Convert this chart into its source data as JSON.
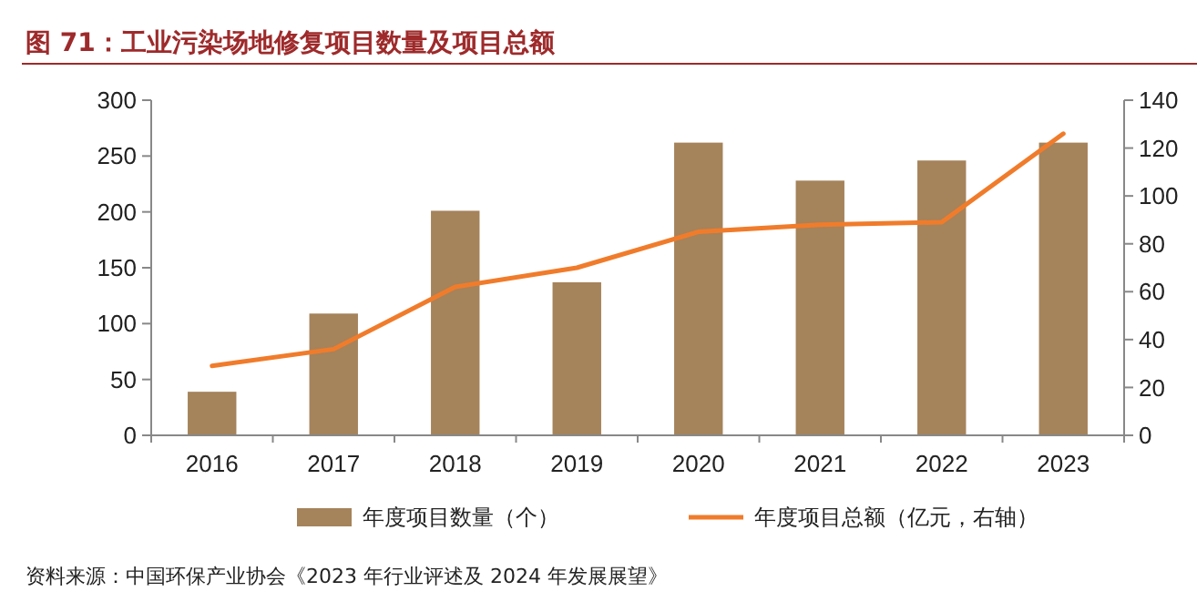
{
  "chart_data": {
    "type": "bar",
    "title": "图 71：工业污染场地修复项目数量及项目总额",
    "categories": [
      "2016",
      "2017",
      "2018",
      "2019",
      "2020",
      "2021",
      "2022",
      "2023"
    ],
    "series": [
      {
        "name": "年度项目数量（个）",
        "color": "#a5835b",
        "values": [
          39,
          109,
          201,
          137,
          262,
          228,
          246,
          262
        ]
      },
      {
        "name": "年度项目总额（亿元，右轴）",
        "type": "line",
        "axis": "y2",
        "color": "#f07c2b",
        "values": [
          29,
          36,
          62,
          70,
          85,
          88,
          89,
          126
        ]
      }
    ],
    "ylim": [
      0,
      300
    ],
    "yticks": [
      0,
      50,
      100,
      150,
      200,
      250,
      300
    ],
    "y2lim": [
      0,
      140
    ],
    "y2ticks": [
      0,
      20,
      40,
      60,
      80,
      100,
      120,
      140
    ],
    "legend": "bottom",
    "grid": false,
    "annotations": [
      "资料来源：中国环保产业协会《2023 年行业评述及 2024 年发展展望》"
    ]
  }
}
